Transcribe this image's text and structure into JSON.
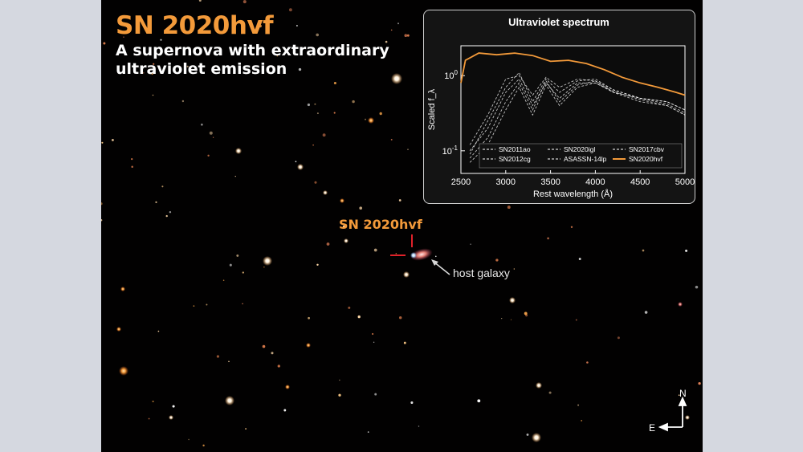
{
  "title": "SN 2020hvf",
  "subtitle_line1": "A supernova with extraordinary",
  "subtitle_line2": "ultraviolet emission",
  "marker_label": "SN 2020hvf",
  "host_label": "host galaxy",
  "compass": {
    "north": "N",
    "east": "E"
  },
  "colors": {
    "accent": "#f39a3a",
    "marker": "#e0222a",
    "background": "#020101",
    "page": "#d5d8e0"
  },
  "chart_data": {
    "type": "line",
    "title": "Ultraviolet spectrum",
    "xlabel": "Rest wavelength (Å)",
    "ylabel": "Scaled f_λ",
    "xlim": [
      2500,
      5000
    ],
    "ylim": [
      0.05,
      2.5
    ],
    "yscale": "log",
    "xticks": [
      "2500",
      "3000",
      "3500",
      "4000",
      "4500",
      "5000"
    ],
    "yticks": [
      "10^-1",
      "10^0"
    ],
    "legend_position": "bottom",
    "series": [
      {
        "name": "SN2011ao",
        "style": "dashed",
        "color": "#ffffff",
        "x": [
          2600,
          2800,
          3000,
          3150,
          3300,
          3450,
          3600,
          3800,
          4000,
          4200,
          4500,
          4800,
          5000
        ],
        "y": [
          0.12,
          0.3,
          0.9,
          1.0,
          0.55,
          0.95,
          0.7,
          0.9,
          0.85,
          0.65,
          0.5,
          0.45,
          0.35
        ]
      },
      {
        "name": "SN2012cg",
        "style": "dashed",
        "color": "#ffffff",
        "x": [
          2600,
          2800,
          3000,
          3150,
          3300,
          3450,
          3600,
          3800,
          4000,
          4200,
          4500,
          4800,
          5000
        ],
        "y": [
          0.1,
          0.2,
          0.6,
          0.9,
          0.4,
          0.8,
          0.5,
          0.8,
          0.8,
          0.6,
          0.45,
          0.4,
          0.3
        ]
      },
      {
        "name": "SN2020igl",
        "style": "dashed",
        "color": "#ffffff",
        "x": [
          2600,
          2800,
          3000,
          3150,
          3300,
          3450,
          3600,
          3800,
          4000,
          4200,
          4500,
          4800,
          5000
        ],
        "y": [
          0.08,
          0.15,
          0.45,
          0.8,
          0.35,
          0.85,
          0.45,
          0.75,
          0.85,
          0.6,
          0.5,
          0.45,
          0.35
        ]
      },
      {
        "name": "ASASSN-14lp",
        "style": "dashed",
        "color": "#ffffff",
        "x": [
          2600,
          2800,
          3000,
          3150,
          3300,
          3450,
          3600,
          3800,
          4000,
          4200,
          4500,
          4800,
          5000
        ],
        "y": [
          0.09,
          0.25,
          0.7,
          1.1,
          0.45,
          0.9,
          0.6,
          0.85,
          0.9,
          0.65,
          0.5,
          0.42,
          0.32
        ]
      },
      {
        "name": "SN2017cbv",
        "style": "dashed",
        "color": "#ffffff",
        "x": [
          2600,
          2800,
          3000,
          3150,
          3300,
          3450,
          3600,
          3800,
          4000,
          4200,
          4500,
          4800,
          5000
        ],
        "y": [
          0.07,
          0.12,
          0.35,
          0.7,
          0.3,
          0.75,
          0.4,
          0.7,
          0.8,
          0.62,
          0.48,
          0.4,
          0.3
        ]
      },
      {
        "name": "SN2020hvf",
        "style": "solid",
        "color": "#f39a3a",
        "x": [
          2500,
          2550,
          2700,
          2900,
          3100,
          3300,
          3500,
          3700,
          3900,
          4100,
          4300,
          4500,
          4700,
          4900,
          5000
        ],
        "y": [
          0.8,
          1.6,
          2.0,
          1.9,
          2.0,
          1.85,
          1.55,
          1.6,
          1.45,
          1.2,
          0.95,
          0.8,
          0.7,
          0.6,
          0.55
        ]
      }
    ]
  }
}
